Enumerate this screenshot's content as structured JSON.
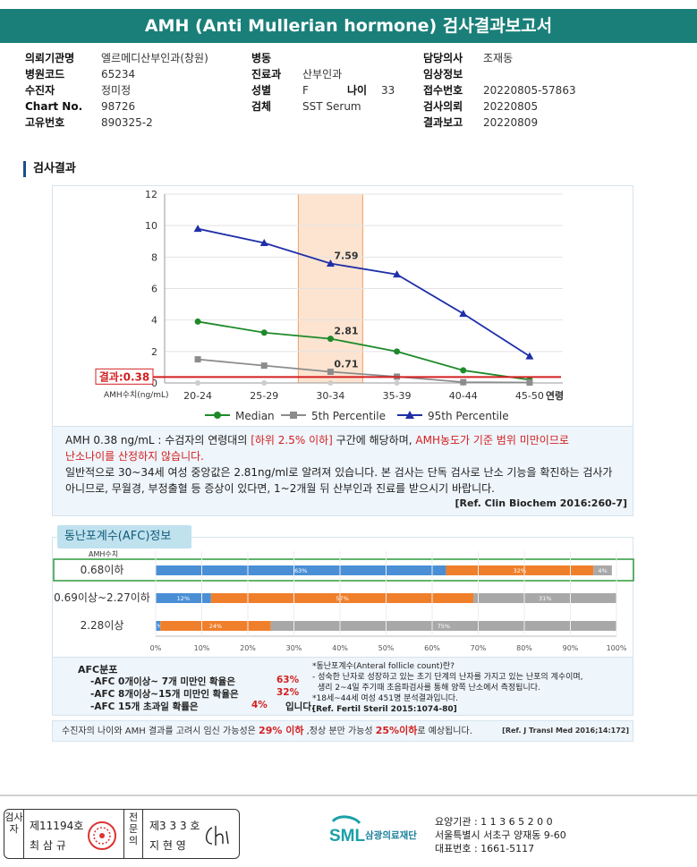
{
  "report_title": "AMH (Anti Mullerian hormone) 검사결과보고서",
  "patient_info": {
    "col1": [
      {
        "label": "의뢰기관명",
        "value": "엘르메디산부인과(창원)"
      },
      {
        "label": "병원코드",
        "value": "65234"
      },
      {
        "label": "수진자",
        "value": "정미정"
      },
      {
        "label": "Chart No.",
        "value": "98726"
      },
      {
        "label": "고유번호",
        "value": "890325-2"
      }
    ],
    "col2": [
      {
        "label": "병동",
        "value": ""
      },
      {
        "label": "진료과",
        "value": "산부인과"
      },
      {
        "label": "성별",
        "value": "F"
      },
      {
        "label": "검체",
        "value": "SST Serum"
      }
    ],
    "age_label": "나이",
    "age_value": "33",
    "col3": [
      {
        "label": "담당의사",
        "value": "조재동"
      },
      {
        "label": "임상정보",
        "value": ""
      },
      {
        "label": "접수번호",
        "value": "20220805-57863"
      },
      {
        "label": "검사의뢰",
        "value": "20220805"
      },
      {
        "label": "결과보고",
        "value": "20220809"
      }
    ]
  },
  "section_title": "검사결과",
  "chart_data": [
    {
      "type": "line",
      "categories": [
        "20-24",
        "25-29",
        "30-34",
        "35-39",
        "40-44",
        "45-50"
      ],
      "x_axis_suffix": "연령",
      "y_ticks": [
        "0",
        "2",
        "4",
        "6",
        "8",
        "10",
        "12"
      ],
      "ylim": [
        0,
        12
      ],
      "ylabel": "AMH수치(ng/mL)",
      "highlight_category": "30-34",
      "series": [
        {
          "name": "Median",
          "color": "#1e8a2a",
          "marker": "circle",
          "values": [
            3.9,
            3.2,
            2.81,
            2.0,
            0.8,
            0.2
          ]
        },
        {
          "name": "5th Percentile",
          "color": "#8c8c8c",
          "marker": "square",
          "values": [
            1.5,
            1.1,
            0.71,
            0.4,
            0.05,
            0.03
          ]
        },
        {
          "name": "95th Percentile",
          "color": "#1f2fa8",
          "marker": "triangle",
          "values": [
            9.8,
            8.9,
            7.59,
            6.9,
            4.4,
            1.7
          ]
        }
      ],
      "data_labels": [
        {
          "series": "95th Percentile",
          "category": "30-34",
          "text": "7.59"
        },
        {
          "series": "Median",
          "category": "30-34",
          "text": "2.81"
        },
        {
          "series": "5th Percentile",
          "category": "30-34",
          "text": "0.71"
        }
      ],
      "result_line": {
        "label": "결과:0.38",
        "value": 0.38,
        "color": "#d32020"
      },
      "legend_position": "bottom"
    },
    {
      "type": "bar",
      "stacked": true,
      "orientation": "horizontal",
      "ylabel": "AMH수치",
      "categories": [
        "0.68이하",
        "0.69이상~2.27이하",
        "2.28이상"
      ],
      "highlight_category": "0.68이하",
      "x_ticks": [
        "0%",
        "10%",
        "20%",
        "30%",
        "40%",
        "50%",
        "60%",
        "70%",
        "80%",
        "90%",
        "100%"
      ],
      "xlim": [
        0,
        100
      ],
      "series": [
        {
          "color": "#4a8fd6",
          "values": [
            63,
            12,
            1
          ]
        },
        {
          "color": "#f07f2b",
          "values": [
            32,
            57,
            24
          ]
        },
        {
          "color": "#a8a8a8",
          "values": [
            4,
            31,
            75
          ]
        }
      ],
      "value_labels": [
        [
          "63%",
          "32%",
          "4%"
        ],
        [
          "12%",
          "57%",
          "31%"
        ],
        [
          "1%",
          "24%",
          "75%"
        ]
      ]
    }
  ],
  "interpretation": {
    "line1_pre": "AMH  0.38 ng/mL : 수검자의 연령대의 ",
    "line1_red1": "[하위 2.5% 이하]",
    "line1_mid": " 구간에 해당하며, ",
    "line1_red2": "AMH농도가 기준 범위 미만이므로",
    "line2_red": "난소나이를 산정하지 않습니다.",
    "para2": "일반적으로 30~34세 여성 중앙값은 2.81ng/ml로 알려져 있습니다. 본 검사는 단독 검사로 난소 기능을 확진하는 검사가 아니므로, 무월경, 부정출혈 등 증상이 있다면, 1~2개월 뒤 산부인과 진료를 받으시기 바랍니다.",
    "ref": "[Ref. Clin Biochem 2016:260-7]"
  },
  "afc": {
    "tab_title": "동난포계수(AFC)정보",
    "dist_title": "AFC분포",
    "rows": [
      {
        "text": "-AFC  0개이상~ 7개 미만인 확율은",
        "pct": "63%"
      },
      {
        "text": "-AFC  8개이상~15개 미만인 확율은",
        "pct": "32%"
      },
      {
        "text": "-AFC  15개 초과일 확률은",
        "pct": "4%",
        "suffix": "입니다."
      }
    ],
    "note_title": "*동난포계수(Anteral follicle count)란?",
    "note_line1": "- 성숙한 난자로 성장하고 있는 초기 단계의 난자를 가지고 있는 난포의 계수이며,",
    "note_line2": "  생리 2~4일 주기때 초음파검사를 통해 양쪽 난소에서 측정됩니다.",
    "note_line3": "*18세~44세 여성 451명 분석결과입니다.",
    "note_ref": "[Ref. Fertil Steril 2015:1074-80]"
  },
  "summary": {
    "pre": "수진자의 나이와 AMH 결과를 고려시 임신 가능성은 ",
    "red1": "29% 이하",
    "mid": " ,정상 분만 가능성 ",
    "red2": "25%이하",
    "post": "로 예상됩니다.",
    "ref": "[Ref. J Transl Med 2016;14:172]"
  },
  "footer": {
    "exam_label": "검사자",
    "exam_no": "제11194호",
    "exam_name": "최 삼 규",
    "spec_label": "전문의",
    "spec_no": "제3 3 3 호",
    "spec_name": "지 현 영",
    "org_logo": "SML",
    "org_name": "삼광의료재단",
    "org_line1": "요양기관 : 1 1 3 6 5 2 0 0",
    "org_line2": "서울특별시 서초구 양재동 9-60",
    "org_line3": "대표번호 : 1661-5117"
  }
}
